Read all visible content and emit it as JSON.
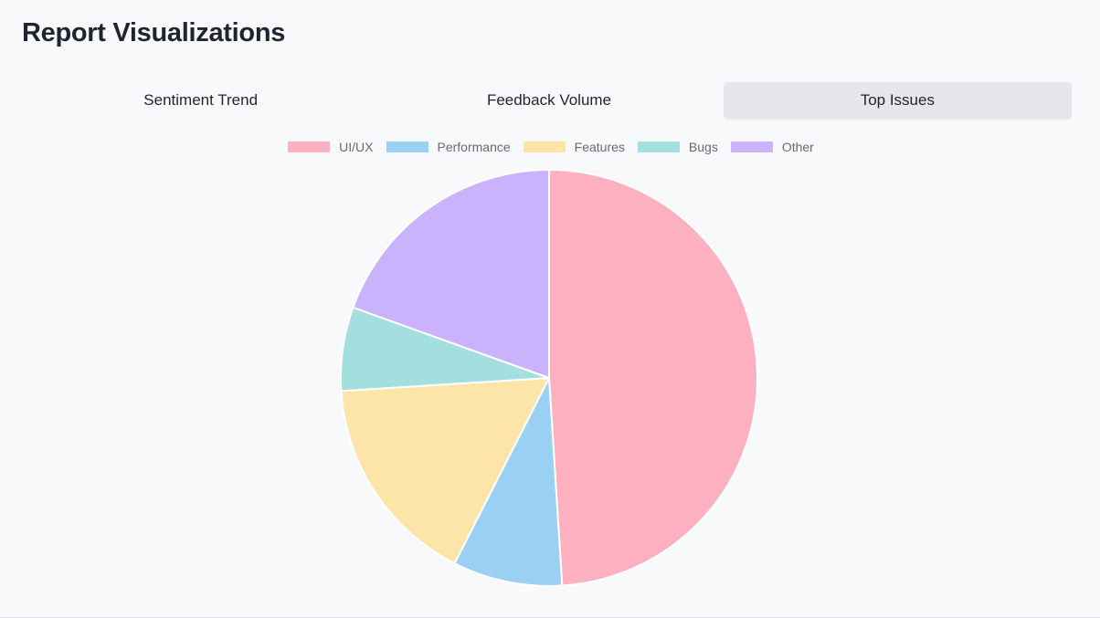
{
  "page": {
    "title": "Report Visualizations"
  },
  "tabs": [
    {
      "label": "Sentiment Trend",
      "active": false
    },
    {
      "label": "Feedback Volume",
      "active": false
    },
    {
      "label": "Top Issues",
      "active": true
    }
  ],
  "chart_data": {
    "type": "pie",
    "categories": [
      "UI/UX",
      "Performance",
      "Features",
      "Bugs",
      "Other"
    ],
    "values": [
      49,
      8.5,
      16.5,
      6.5,
      19.5
    ],
    "colors": [
      "#fdb0c0",
      "#9bd0f5",
      "#fde4a9",
      "#a4dfdf",
      "#cab2fc"
    ],
    "legend_position": "top",
    "start_angle": "top",
    "direction": "clockwise",
    "slice_border_color": "#ffffff"
  }
}
